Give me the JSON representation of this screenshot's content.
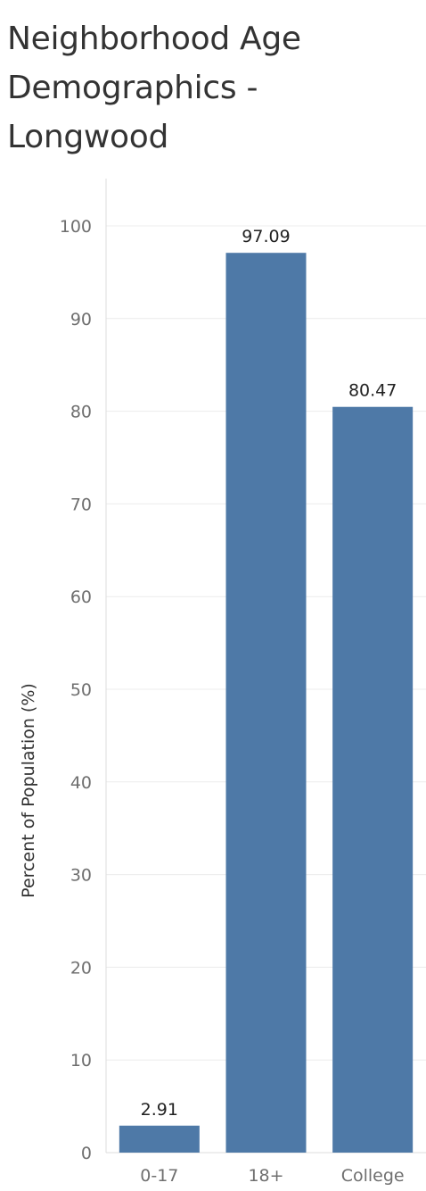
{
  "chart_data": {
    "type": "bar",
    "title": "Neighborhood Age Demographics - Longwood",
    "ylabel": "Percent of Population (%)",
    "xlabel": "",
    "categories": [
      "0-17",
      "18+",
      "College"
    ],
    "values": [
      2.91,
      97.09,
      80.47
    ],
    "data_labels": [
      "2.91",
      "97.09",
      "80.47"
    ],
    "yticks": [
      0,
      10,
      20,
      30,
      40,
      50,
      60,
      70,
      80,
      90,
      100
    ],
    "ylim": [
      0,
      100
    ],
    "grid": true,
    "bar_color": "#4e79a7"
  }
}
